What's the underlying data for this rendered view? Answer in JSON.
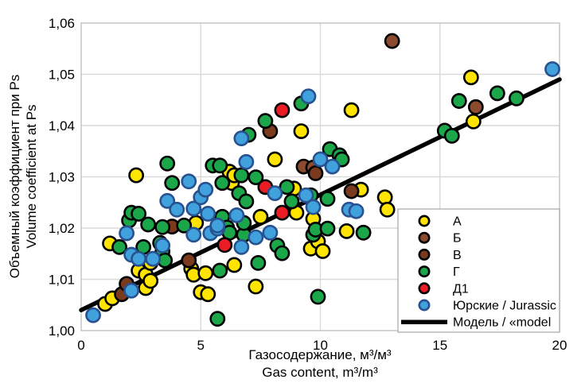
{
  "chart_data": {
    "type": "scatter",
    "title": "",
    "axes": {
      "x": {
        "label_ru": "Газосодержание, м³/м³",
        "label_en": "Gas content, m³/m³",
        "min": 0,
        "max": 20,
        "ticks": [
          0,
          5,
          10,
          15,
          20
        ],
        "tick_labels": [
          "0",
          "5",
          "10",
          "15",
          "20"
        ]
      },
      "y": {
        "label_ru": "Объемный коэффициент при Ps",
        "label_en": "Volume coefficient at Ps",
        "min": 1.0,
        "max": 1.06,
        "ticks": [
          1.0,
          1.01,
          1.02,
          1.03,
          1.04,
          1.05,
          1.06
        ],
        "tick_labels": [
          "1,00",
          "1,01",
          "1,02",
          "1,03",
          "1,04",
          "1,05",
          "1,06"
        ]
      }
    },
    "grid": true,
    "grid_color": "#D9D9D9",
    "plot_border_color": "#C9C9C9",
    "legend": {
      "position": "inside-lower-right",
      "border_color": "#A6A6A6",
      "background": "#ffffff"
    },
    "series": [
      {
        "name": "А",
        "marker": "circle",
        "fill": "#FFE400",
        "stroke": "#000000",
        "points": [
          [
            1.0,
            1.0052
          ],
          [
            1.3,
            1.0063
          ],
          [
            1.2,
            1.017
          ],
          [
            2.3,
            1.0303
          ],
          [
            2.4,
            1.0117
          ],
          [
            2.7,
            1.0109
          ],
          [
            2.7,
            1.0083
          ],
          [
            2.9,
            1.0097
          ],
          [
            2.9,
            1.0132
          ],
          [
            4.6,
            1.0121
          ],
          [
            4.7,
            1.0109
          ],
          [
            4.8,
            1.021
          ],
          [
            5.0,
            1.0075
          ],
          [
            5.2,
            1.0112
          ],
          [
            5.3,
            1.0071
          ],
          [
            6.2,
            1.031
          ],
          [
            6.3,
            1.0288
          ],
          [
            6.4,
            1.0303
          ],
          [
            6.4,
            1.0128
          ],
          [
            7.3,
            1.0086
          ],
          [
            7.5,
            1.0222
          ],
          [
            8.1,
            1.0334
          ],
          [
            8.9,
            1.0277
          ],
          [
            9.0,
            1.023
          ],
          [
            9.2,
            1.0389
          ],
          [
            9.6,
            1.016
          ],
          [
            9.7,
            1.0218
          ],
          [
            9.9,
            1.0174
          ],
          [
            10.1,
            1.0155
          ],
          [
            11.1,
            1.0194
          ],
          [
            11.3,
            1.043
          ],
          [
            11.7,
            1.0275
          ],
          [
            12.7,
            1.026
          ],
          [
            12.8,
            1.0236
          ],
          [
            16.3,
            1.0494
          ],
          [
            16.4,
            1.0408
          ]
        ]
      },
      {
        "name": "Б",
        "marker": "circle",
        "fill": "#8C4A2F",
        "stroke": "#000000",
        "points": [
          [
            9.3,
            1.032
          ],
          [
            9.7,
            1.0318
          ],
          [
            13.0,
            1.0565
          ],
          [
            16.5,
            1.0436
          ]
        ]
      },
      {
        "name": "В",
        "marker": "circle",
        "fill": "#7A3A1D",
        "stroke": "#000000",
        "points": [
          [
            1.7,
            1.0071
          ],
          [
            1.9,
            1.0091
          ],
          [
            3.8,
            1.0203
          ],
          [
            4.5,
            1.0137
          ],
          [
            7.9,
            1.0389
          ],
          [
            9.8,
            1.0307
          ],
          [
            11.3,
            1.0272
          ]
        ]
      },
      {
        "name": "Г",
        "marker": "circle",
        "fill": "#1CA64A",
        "stroke": "#000000",
        "points": [
          [
            1.6,
            1.0163
          ],
          [
            2.0,
            1.0215
          ],
          [
            2.1,
            1.023
          ],
          [
            2.4,
            1.0228
          ],
          [
            2.6,
            1.0163
          ],
          [
            2.8,
            1.0207
          ],
          [
            3.3,
            1.0171
          ],
          [
            3.4,
            1.0154
          ],
          [
            3.4,
            1.0202
          ],
          [
            3.5,
            1.0137
          ],
          [
            3.6,
            1.0326
          ],
          [
            3.8,
            1.0288
          ],
          [
            4.3,
            1.0205
          ],
          [
            5.5,
            1.0322
          ],
          [
            5.7,
            1.0023
          ],
          [
            5.8,
            1.0117
          ],
          [
            5.8,
            1.0322
          ],
          [
            5.9,
            1.0222
          ],
          [
            5.9,
            1.0288
          ],
          [
            6.1,
            1.0201
          ],
          [
            6.2,
            1.0191
          ],
          [
            6.6,
            1.0268
          ],
          [
            6.7,
            1.0303
          ],
          [
            6.8,
            1.0187
          ],
          [
            6.8,
            1.021
          ],
          [
            6.9,
            1.0252
          ],
          [
            7.0,
            1.0382
          ],
          [
            7.3,
            1.0299
          ],
          [
            7.4,
            1.0132
          ],
          [
            7.7,
            1.0409
          ],
          [
            8.2,
            1.0166
          ],
          [
            8.4,
            1.0151
          ],
          [
            8.6,
            1.028
          ],
          [
            8.8,
            1.0252
          ],
          [
            9.2,
            1.0443
          ],
          [
            9.6,
            1.0264
          ],
          [
            9.7,
            1.0187
          ],
          [
            9.8,
            1.0197
          ],
          [
            9.9,
            1.0066
          ],
          [
            10.3,
            1.0199
          ],
          [
            10.3,
            1.0257
          ],
          [
            10.4,
            1.0354
          ],
          [
            10.8,
            1.0342
          ],
          [
            10.9,
            1.0334
          ],
          [
            11.8,
            1.0191
          ],
          [
            15.2,
            1.039
          ],
          [
            15.5,
            1.038
          ],
          [
            15.8,
            1.0448
          ],
          [
            17.4,
            1.0463
          ],
          [
            18.2,
            1.0453
          ]
        ]
      },
      {
        "name": "Д1",
        "marker": "circle",
        "fill": "#EC1C24",
        "stroke": "#000000",
        "points": [
          [
            6.0,
            1.0167
          ],
          [
            7.7,
            1.028
          ],
          [
            8.4,
            1.023
          ],
          [
            8.4,
            1.043
          ]
        ]
      },
      {
        "name": "Юрские / Jurassic",
        "marker": "circle",
        "fill": "#41A1DC",
        "stroke": "#27528F",
        "points": [
          [
            0.5,
            1.003
          ],
          [
            1.9,
            1.019
          ],
          [
            2.1,
            1.0078
          ],
          [
            2.1,
            1.0148
          ],
          [
            2.4,
            1.014
          ],
          [
            3.0,
            1.014
          ],
          [
            3.4,
            1.0166
          ],
          [
            3.6,
            1.0253
          ],
          [
            4.0,
            1.0236
          ],
          [
            4.5,
            1.0291
          ],
          [
            4.7,
            1.0187
          ],
          [
            4.7,
            1.0238
          ],
          [
            5.0,
            1.026
          ],
          [
            5.2,
            1.0275
          ],
          [
            5.3,
            1.0228
          ],
          [
            5.4,
            1.019
          ],
          [
            5.7,
            1.0199
          ],
          [
            5.7,
            1.0205
          ],
          [
            6.5,
            1.0225
          ],
          [
            6.7,
            1.0163
          ],
          [
            6.7,
            1.0375
          ],
          [
            6.9,
            1.0329
          ],
          [
            7.3,
            1.0182
          ],
          [
            7.9,
            1.0191
          ],
          [
            8.1,
            1.0268
          ],
          [
            9.4,
            1.0264
          ],
          [
            9.5,
            1.0457
          ],
          [
            9.7,
            1.0241
          ],
          [
            10.0,
            1.0334
          ],
          [
            10.5,
            1.032
          ],
          [
            11.2,
            1.0236
          ],
          [
            11.5,
            1.0233
          ],
          [
            19.7,
            1.051
          ]
        ]
      },
      {
        "name": "Модель / «model",
        "marker": "line",
        "fill": "#000000",
        "stroke": "#000000",
        "points": [
          [
            0,
            1.004
          ],
          [
            20,
            1.049
          ]
        ]
      }
    ]
  }
}
